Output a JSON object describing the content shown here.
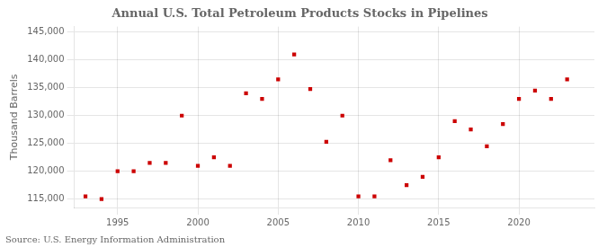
{
  "chart_data": {
    "type": "scatter",
    "title": "Annual U.S. Total Petroleum Products Stocks in Pipelines",
    "ylabel": "Thousand Barrels",
    "annotation": "Source: U.S. Energy Information Administration",
    "x": [
      1993,
      1994,
      1995,
      1996,
      1997,
      1998,
      1999,
      2000,
      2001,
      2002,
      2003,
      2004,
      2005,
      2006,
      2007,
      2008,
      2009,
      2010,
      2011,
      2012,
      2013,
      2014,
      2015,
      2016,
      2017,
      2018,
      2019,
      2020,
      2021,
      2022,
      2023
    ],
    "values": [
      115500,
      115000,
      120000,
      120000,
      121500,
      121500,
      130000,
      121000,
      122500,
      121000,
      134000,
      133000,
      136500,
      141000,
      134800,
      125300,
      130000,
      115500,
      115500,
      122000,
      117500,
      119000,
      122500,
      129000,
      127500,
      124500,
      128500,
      133000,
      134500,
      133000,
      136500
    ],
    "color": "#CC0000",
    "marker": "square",
    "xlim": [
      1992.3,
      2024.7
    ],
    "xticks": [
      1995,
      2000,
      2005,
      2010,
      2015,
      2020
    ],
    "ylim": [
      113500,
      146000
    ],
    "yticks": [
      {
        "value": 115000,
        "label": "115,000"
      },
      {
        "value": 120000,
        "label": "120,000"
      },
      {
        "value": 125000,
        "label": "125,000"
      },
      {
        "value": 130000,
        "label": "130,000"
      },
      {
        "value": 135000,
        "label": "135,000"
      },
      {
        "value": 140000,
        "label": "140,000"
      },
      {
        "value": 145000,
        "label": "145,000"
      }
    ],
    "grid": true
  }
}
